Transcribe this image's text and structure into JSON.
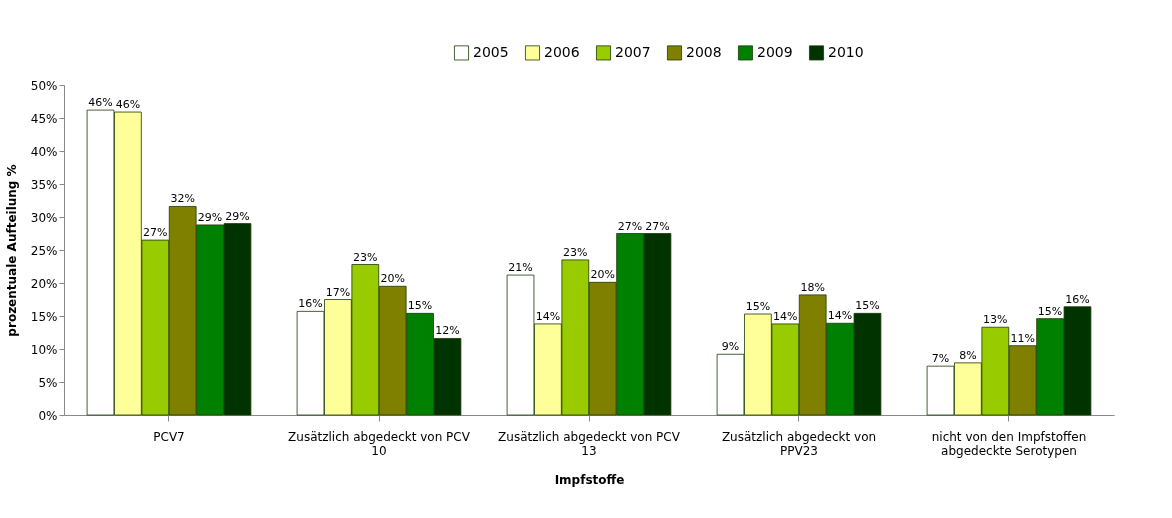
{
  "chart_data": {
    "type": "bar",
    "xlabel": "Impfstoffe",
    "ylabel": "prozentuale Aufteilung %",
    "categories": [
      "PCV7",
      "Zusätzlich abgedeckt von PCV 10",
      "Zusätzlich abgedeckt von PCV 13",
      "Zusätzlich abgedeckt von PPV23",
      "nicht von den Impfstoffen abgedeckte Serotypen"
    ],
    "series": [
      {
        "name": "2005",
        "color": "#ffffff",
        "values": [
          46.2,
          15.7,
          21.2,
          9.2,
          7.4
        ],
        "value_labels": [
          "46%",
          "16%",
          "21%",
          "9%",
          "7%"
        ]
      },
      {
        "name": "2006",
        "color": "#ffff99",
        "values": [
          45.9,
          17.5,
          13.8,
          15.3,
          7.9
        ],
        "value_labels": [
          "46%",
          "17%",
          "14%",
          "15%",
          "8%"
        ]
      },
      {
        "name": "2007",
        "color": "#99cc00",
        "values": [
          26.5,
          22.8,
          23.5,
          13.8,
          13.3
        ],
        "value_labels": [
          "27%",
          "23%",
          "23%",
          "14%",
          "13%"
        ]
      },
      {
        "name": "2008",
        "color": "#808000",
        "values": [
          31.6,
          19.5,
          20.1,
          18.2,
          10.5
        ],
        "value_labels": [
          "32%",
          "20%",
          "20%",
          "18%",
          "11%"
        ]
      },
      {
        "name": "2009",
        "color": "#008000",
        "values": [
          28.8,
          15.4,
          27.5,
          13.9,
          14.6
        ],
        "value_labels": [
          "29%",
          "15%",
          "27%",
          "14%",
          "15%"
        ]
      },
      {
        "name": "2010",
        "color": "#003300",
        "values": [
          29.0,
          11.6,
          27.5,
          15.4,
          16.4
        ],
        "value_labels": [
          "29%",
          "12%",
          "27%",
          "15%",
          "16%"
        ]
      }
    ],
    "ylim": [
      0,
      50
    ],
    "yticks": [
      {
        "value": 0,
        "label": "0%"
      },
      {
        "value": 5,
        "label": "5%"
      },
      {
        "value": 10,
        "label": "10%"
      },
      {
        "value": 15,
        "label": "15%"
      },
      {
        "value": 20,
        "label": "20%"
      },
      {
        "value": 25,
        "label": "25%"
      },
      {
        "value": 30,
        "label": "30%"
      },
      {
        "value": 35,
        "label": "35%"
      },
      {
        "value": 40,
        "label": "40%"
      },
      {
        "value": 45,
        "label": "45%"
      },
      {
        "value": 50,
        "label": "50%"
      }
    ],
    "grid": false,
    "legend": "top"
  }
}
